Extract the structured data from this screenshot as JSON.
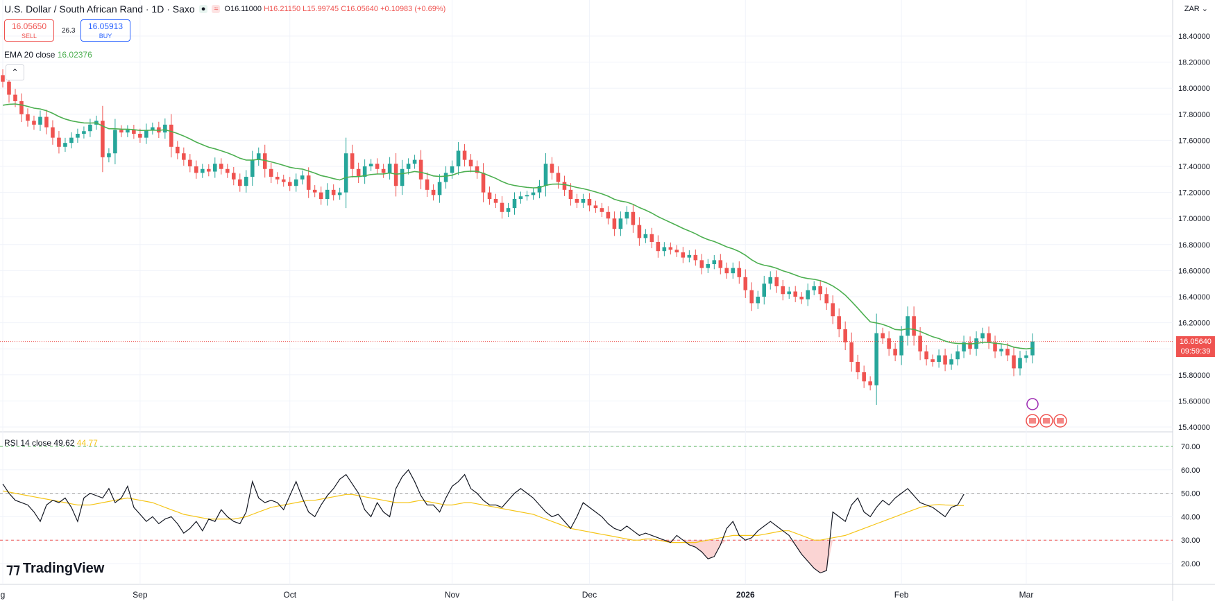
{
  "header": {
    "symbol": "U.S. Dollar / South African Rand · 1D · Saxo",
    "open": "O16.11000",
    "high": "H16.21150",
    "low": "L15.99745",
    "close": "C16.05640",
    "change": "+0.10983 (+0.69%)"
  },
  "trade": {
    "sell_price": "16.05650",
    "sell_label": "SELL",
    "spread": "26.3",
    "buy_price": "16.05913",
    "buy_label": "BUY"
  },
  "ema_label": "EMA 20 close",
  "ema_value": "16.02376",
  "rsi_label": "RSI 14 close",
  "rsi_value": "49.62",
  "rsi_ma_value": "44.77",
  "currency": "ZAR",
  "last_price": "16.05640",
  "countdown": "09:59:39",
  "brand": "TradingView",
  "colors": {
    "up": "#26a69a",
    "down": "#ef5350",
    "ema": "#4caf50",
    "rsi": "#131722",
    "rsi_ma": "#f5c518"
  },
  "chart_data": {
    "type": "candlestick",
    "price_axis": {
      "min": 15.4,
      "max": 18.4,
      "ticks": [
        "18.40000",
        "18.20000",
        "18.00000",
        "17.80000",
        "17.60000",
        "17.40000",
        "17.20000",
        "17.00000",
        "16.80000",
        "16.60000",
        "16.40000",
        "16.20000",
        "16.00000",
        "15.80000",
        "15.60000",
        "15.40000"
      ]
    },
    "rsi_axis": {
      "min": 20,
      "max": 70,
      "ticks": [
        "70.00",
        "60.00",
        "50.00",
        "40.00",
        "30.00",
        "20.00"
      ],
      "levels": [
        70,
        50,
        30
      ]
    },
    "x_labels": [
      {
        "label": "g",
        "index": 0
      },
      {
        "label": "Sep",
        "index": 22
      },
      {
        "label": "Oct",
        "index": 46
      },
      {
        "label": "Nov",
        "index": 72
      },
      {
        "label": "Dec",
        "index": 94
      },
      {
        "label": "2026",
        "index": 119
      },
      {
        "label": "Feb",
        "index": 144
      },
      {
        "label": "Mar",
        "index": 164
      }
    ],
    "closes": [
      18.05,
      17.95,
      17.9,
      17.8,
      17.75,
      17.72,
      17.78,
      17.7,
      17.62,
      17.55,
      17.58,
      17.62,
      17.65,
      17.67,
      17.72,
      17.75,
      17.47,
      17.5,
      17.68,
      17.66,
      17.68,
      17.65,
      17.62,
      17.68,
      17.7,
      17.66,
      17.72,
      17.55,
      17.5,
      17.45,
      17.4,
      17.35,
      17.38,
      17.36,
      17.42,
      17.38,
      17.35,
      17.3,
      17.25,
      17.32,
      17.45,
      17.5,
      17.38,
      17.32,
      17.3,
      17.28,
      17.25,
      17.3,
      17.33,
      17.22,
      17.2,
      17.15,
      17.22,
      17.18,
      17.2,
      17.5,
      17.38,
      17.32,
      17.4,
      17.42,
      17.38,
      17.35,
      17.42,
      17.25,
      17.38,
      17.42,
      17.45,
      17.3,
      17.22,
      17.18,
      17.28,
      17.35,
      17.4,
      17.52,
      17.45,
      17.4,
      17.35,
      17.2,
      17.15,
      17.12,
      17.05,
      17.08,
      17.15,
      17.17,
      17.18,
      17.2,
      17.25,
      17.42,
      17.35,
      17.28,
      17.22,
      17.15,
      17.12,
      17.15,
      17.1,
      17.08,
      17.05,
      17.0,
      16.92,
      17.0,
      17.05,
      16.95,
      16.85,
      16.88,
      16.82,
      16.75,
      16.78,
      16.76,
      16.74,
      16.7,
      16.72,
      16.68,
      16.62,
      16.65,
      16.68,
      16.62,
      16.58,
      16.62,
      16.55,
      16.45,
      16.35,
      16.4,
      16.5,
      16.55,
      16.48,
      16.42,
      16.44,
      16.4,
      16.38,
      16.45,
      16.48,
      16.42,
      16.35,
      16.25,
      16.15,
      16.05,
      15.9,
      15.82,
      15.75,
      15.72,
      16.12,
      16.08,
      16.0,
      15.95,
      16.1,
      16.25,
      16.1,
      15.98,
      15.92,
      15.9,
      15.95,
      15.88,
      15.92,
      15.98,
      16.05,
      16.0,
      16.08,
      16.12,
      16.05,
      15.98,
      16.0,
      15.95,
      15.85,
      15.93,
      15.95,
      16.0564
    ],
    "rsi": [
      54,
      50,
      47,
      46,
      45,
      42,
      38,
      45,
      47,
      46,
      48,
      44,
      38,
      48,
      50,
      49,
      48,
      52,
      46,
      48,
      53,
      44,
      41,
      38,
      40,
      37,
      39,
      40,
      37,
      33,
      35,
      38,
      34,
      39,
      38,
      43,
      40,
      38,
      37,
      42,
      55,
      48,
      46,
      47,
      46,
      43,
      49,
      55,
      48,
      42,
      40,
      45,
      49,
      52,
      56,
      58,
      54,
      50,
      43,
      40,
      46,
      42,
      40,
      52,
      57,
      60,
      55,
      49,
      45,
      45,
      42,
      48,
      53,
      55,
      58,
      52,
      50,
      47,
      45,
      45,
      44,
      47,
      50,
      52,
      50,
      48,
      45,
      42,
      40,
      41,
      38,
      35,
      40,
      46,
      44,
      42,
      40,
      37,
      35,
      34,
      36,
      34,
      32,
      33,
      32,
      31,
      30,
      29,
      32,
      30,
      28,
      27,
      25,
      22,
      23,
      28,
      35,
      38,
      32,
      30,
      31,
      34,
      36,
      38,
      36,
      34,
      32,
      28,
      24,
      21,
      18,
      16,
      17,
      42,
      40,
      38,
      45,
      48,
      42,
      40,
      44,
      47,
      45,
      48,
      50,
      52,
      49,
      46,
      45,
      44,
      42,
      40,
      44,
      45,
      49.62
    ],
    "rsi_ma": [
      51,
      50.5,
      50,
      49.5,
      49,
      48.5,
      48,
      47.5,
      47,
      46.5,
      46,
      45.5,
      45,
      45,
      45,
      45.5,
      46,
      46.5,
      47,
      47.5,
      48,
      47.5,
      47,
      46.5,
      46,
      45,
      44,
      43,
      42,
      41,
      40.5,
      40,
      39.5,
      39,
      39,
      39,
      39,
      39,
      39.5,
      40,
      41,
      42,
      43,
      44,
      44.5,
      45,
      45.5,
      46,
      46.5,
      47,
      47,
      47.5,
      48,
      48.5,
      49,
      49.5,
      49.5,
      49,
      48.5,
      48,
      47.5,
      47,
      46.5,
      46,
      46,
      46,
      46.5,
      47,
      46.5,
      46,
      45.5,
      45,
      45,
      45.5,
      46,
      46,
      45.5,
      45,
      44.5,
      44,
      43.5,
      43,
      42.5,
      42,
      41.5,
      41,
      40,
      39,
      38,
      37,
      36,
      35,
      34.5,
      34,
      33.5,
      33,
      32.5,
      32,
      31.5,
      31,
      30.5,
      30,
      30,
      30.5,
      30.5,
      30,
      29.5,
      29,
      29,
      29,
      29,
      29,
      29.5,
      30,
      30.5,
      31,
      31.5,
      32,
      32,
      32,
      32,
      32,
      32.5,
      33,
      33.5,
      34,
      34,
      33,
      32,
      31,
      30,
      30,
      30.5,
      31,
      31.5,
      32,
      33,
      34,
      35,
      36,
      37,
      38,
      39,
      40,
      41,
      42,
      43,
      44,
      44.5,
      45,
      45.2,
      45,
      44.9,
      44.8,
      44.77
    ]
  }
}
